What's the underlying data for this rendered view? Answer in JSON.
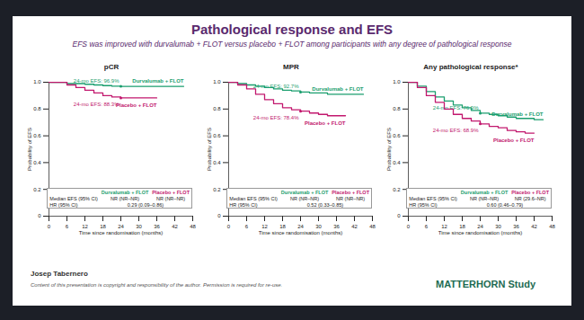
{
  "title": "Pathological response and EFS",
  "subtitle": "EFS was improved with durvalumab + FLOT versus placebo + FLOT among participants with any degree of pathological response",
  "chart_data": [
    {
      "type": "line",
      "title": "pCR",
      "x_label": "Time since randomisation (months)",
      "y_label": "Probability of EFS",
      "xlim": [
        0,
        48
      ],
      "xticks": [
        0,
        6,
        12,
        18,
        24,
        30,
        36,
        42,
        48
      ],
      "ylim": [
        0,
        1
      ],
      "yticks": [
        0,
        0.2,
        0.4,
        0.6,
        0.8,
        {
          "value": 1,
          "label": "1.0"
        }
      ],
      "x": [
        0,
        3,
        6,
        9,
        12,
        15,
        18,
        21,
        24,
        27,
        30,
        33,
        36,
        39,
        42,
        45
      ],
      "series": [
        {
          "name": "Durvalumab + FLOT",
          "color": "#1a9e6e",
          "values": [
            1,
            1,
            0.99,
            0.99,
            0.985,
            0.98,
            0.975,
            0.97,
            0.969,
            0.969,
            0.969,
            0.969,
            0.969,
            0.969,
            0.969,
            0.969
          ],
          "annotation": {
            "x": 24,
            "y": 0.969,
            "text": "24-mo EFS: 96.9%"
          }
        },
        {
          "name": "Placebo + FLOT",
          "color": "#c2186e",
          "values": [
            1,
            1,
            0.98,
            0.96,
            0.94,
            0.92,
            0.9,
            0.89,
            0.883,
            0.883,
            0.883,
            0.883,
            0.883,
            null,
            null,
            null
          ],
          "annotation": {
            "x": 24,
            "y": 0.883,
            "text": "24-mo EFS: 88.3%"
          }
        }
      ],
      "inset": {
        "rows": [
          {
            "label": "Median EFS (95% CI)",
            "values": [
              "NR (NR–NR)",
              "NR (NR–NR)"
            ]
          },
          {
            "label": "HR (95% CI)",
            "values": [
              "0.29 (0.09–0.86)"
            ]
          }
        ]
      }
    },
    {
      "type": "line",
      "title": "MPR",
      "x_label": "Time since randomisation (months)",
      "y_label": "Probability of EFS",
      "xlim": [
        0,
        48
      ],
      "xticks": [
        0,
        6,
        12,
        18,
        24,
        30,
        36,
        42,
        48
      ],
      "ylim": [
        0,
        1
      ],
      "yticks": [
        0,
        0.2,
        0.4,
        0.6,
        0.8,
        {
          "value": 1,
          "label": "1.0"
        }
      ],
      "x": [
        0,
        3,
        6,
        9,
        12,
        15,
        18,
        21,
        24,
        27,
        30,
        33,
        36,
        39,
        42,
        45
      ],
      "series": [
        {
          "name": "Durvalumab + FLOT",
          "color": "#1a9e6e",
          "values": [
            1,
            0.99,
            0.98,
            0.97,
            0.96,
            0.95,
            0.94,
            0.935,
            0.927,
            0.92,
            0.92,
            0.91,
            0.91,
            0.91,
            0.91,
            0.91
          ],
          "annotation": {
            "x": 24,
            "y": 0.927,
            "text": "24-mo EFS: 92.7%"
          }
        },
        {
          "name": "Placebo + FLOT",
          "color": "#c2186e",
          "values": [
            1,
            0.98,
            0.95,
            0.91,
            0.87,
            0.84,
            0.81,
            0.795,
            0.784,
            0.77,
            0.76,
            0.75,
            0.75,
            0.75,
            null,
            null
          ],
          "annotation": {
            "x": 24,
            "y": 0.784,
            "text": "24-mo EFS: 78.4%"
          }
        }
      ],
      "inset": {
        "rows": [
          {
            "label": "Median EFS (95% CI)",
            "values": [
              "NR (NR–NR)",
              "NR (NR–NR)"
            ]
          },
          {
            "label": "HR (95% CI)",
            "values": [
              "0.52 (0.33–0.85)"
            ]
          }
        ]
      }
    },
    {
      "type": "line",
      "title": "Any pathological response*",
      "x_label": "Time since randomisation (months)",
      "y_label": "Probability of EFS",
      "xlim": [
        0,
        48
      ],
      "xticks": [
        0,
        6,
        12,
        18,
        24,
        30,
        36,
        42,
        48
      ],
      "ylim": [
        0,
        1
      ],
      "yticks": [
        0,
        0.2,
        0.4,
        0.6,
        0.8,
        {
          "value": 1,
          "label": "1.0"
        }
      ],
      "x": [
        0,
        3,
        6,
        9,
        12,
        15,
        18,
        21,
        24,
        27,
        30,
        33,
        36,
        39,
        42,
        45
      ],
      "series": [
        {
          "name": "Durvalumab + FLOT",
          "color": "#1a9e6e",
          "values": [
            1,
            0.97,
            0.93,
            0.89,
            0.86,
            0.83,
            0.81,
            0.79,
            0.769,
            0.76,
            0.75,
            0.74,
            0.73,
            0.73,
            0.72,
            0.72
          ],
          "annotation": {
            "x": 24,
            "y": 0.769,
            "text": "24-mo EFS: 76.9%"
          }
        },
        {
          "name": "Placebo + FLOT",
          "color": "#c2186e",
          "values": [
            1,
            0.96,
            0.9,
            0.85,
            0.8,
            0.76,
            0.73,
            0.71,
            0.689,
            0.67,
            0.66,
            0.64,
            0.63,
            0.62,
            0.62,
            null
          ],
          "annotation": {
            "x": 24,
            "y": 0.689,
            "text": "24-mo EFS: 68.9%"
          }
        }
      ],
      "inset": {
        "rows": [
          {
            "label": "Median EFS (95% CI)",
            "values": [
              "NR (NR–NR)",
              "NR (29.6–NR)"
            ]
          },
          {
            "label": "HR (95% CI)",
            "values": [
              "0.60 (0.46–0.79)"
            ]
          }
        ]
      }
    }
  ],
  "footer": {
    "presenter": "Josep Tabernero",
    "copyright": "Content of this presentation is copyright and responsibility of the author. Permission is required for re-use.",
    "study": "MATTERHORN Study"
  }
}
